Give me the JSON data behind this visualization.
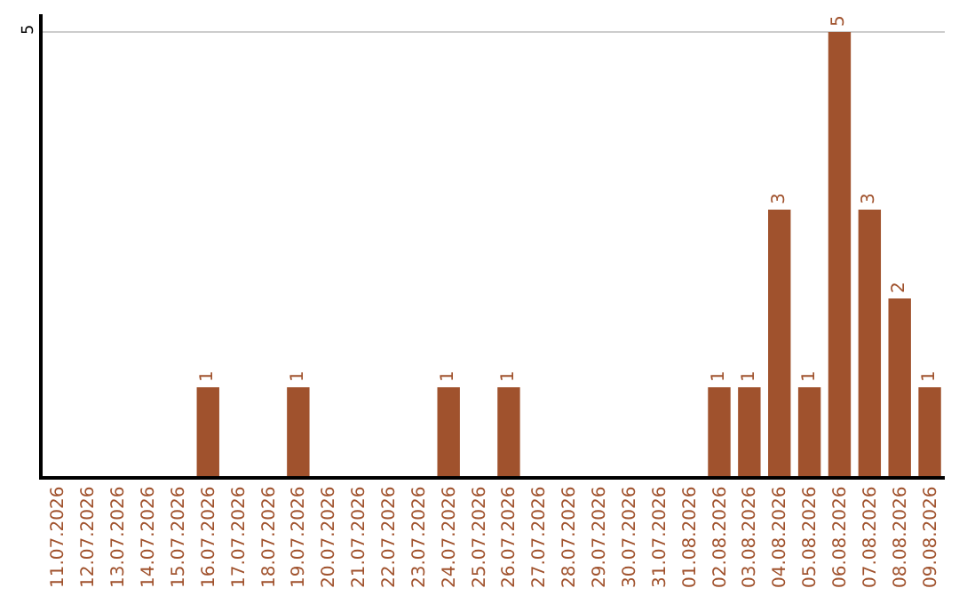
{
  "chart_data": {
    "type": "bar",
    "categories": [
      "11.07.2026",
      "12.07.2026",
      "13.07.2026",
      "14.07.2026",
      "15.07.2026",
      "16.07.2026",
      "17.07.2026",
      "18.07.2026",
      "19.07.2026",
      "20.07.2026",
      "21.07.2026",
      "22.07.2026",
      "23.07.2026",
      "24.07.2026",
      "25.07.2026",
      "26.07.2026",
      "27.07.2026",
      "28.07.2026",
      "29.07.2026",
      "30.07.2026",
      "31.07.2026",
      "01.08.2026",
      "02.08.2026",
      "03.08.2026",
      "04.08.2026",
      "05.08.2026",
      "06.08.2026",
      "07.08.2026",
      "08.08.2026",
      "09.08.2026"
    ],
    "values": [
      0,
      0,
      0,
      0,
      0,
      1,
      0,
      0,
      1,
      0,
      0,
      0,
      0,
      1,
      0,
      1,
      0,
      0,
      0,
      0,
      0,
      0,
      1,
      1,
      3,
      1,
      5,
      3,
      2,
      1
    ],
    "value_labels": [
      null,
      null,
      null,
      null,
      null,
      "1",
      null,
      null,
      "1",
      null,
      null,
      null,
      null,
      "1",
      null,
      "1",
      null,
      null,
      null,
      null,
      null,
      null,
      "1",
      "1",
      "3",
      "1",
      "5",
      "3",
      "2",
      "1"
    ],
    "color": "#a0522d",
    "ylim": [
      0,
      5.2
    ],
    "yticks": [
      5
    ],
    "grid": "y",
    "legend": false
  }
}
